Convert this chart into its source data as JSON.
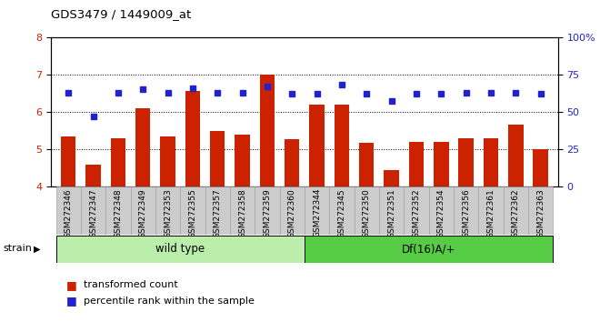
{
  "title": "GDS3479 / 1449009_at",
  "samples": [
    "GSM272346",
    "GSM272347",
    "GSM272348",
    "GSM272349",
    "GSM272353",
    "GSM272355",
    "GSM272357",
    "GSM272358",
    "GSM272359",
    "GSM272360",
    "GSM272344",
    "GSM272345",
    "GSM272350",
    "GSM272351",
    "GSM272352",
    "GSM272354",
    "GSM272356",
    "GSM272361",
    "GSM272362",
    "GSM272363"
  ],
  "red_values": [
    5.35,
    4.6,
    5.3,
    6.1,
    5.35,
    6.55,
    5.5,
    5.4,
    7.0,
    5.28,
    6.2,
    6.2,
    5.18,
    4.45,
    5.2,
    5.2,
    5.3,
    5.3,
    5.65,
    5.0
  ],
  "blue_values": [
    63,
    47,
    63,
    65,
    63,
    66,
    63,
    63,
    67,
    62,
    62,
    68,
    62,
    57,
    62,
    62,
    63,
    63,
    63,
    62
  ],
  "wild_type_count": 10,
  "df16_count": 10,
  "ylim_left": [
    4,
    8
  ],
  "ylim_right": [
    0,
    100
  ],
  "yticks_left": [
    4,
    5,
    6,
    7,
    8
  ],
  "yticks_right": [
    0,
    25,
    50,
    75,
    100
  ],
  "bar_color": "#cc2200",
  "dot_color": "#2222cc",
  "wild_type_label": "wild type",
  "df16_label": "Df(16)A/+",
  "strain_label": "strain",
  "legend_bar": "transformed count",
  "legend_dot": "percentile rank within the sample",
  "group_color_wt": "#bbeeaa",
  "group_color_df": "#55cc44",
  "xlabel_color": "#cc2200",
  "right_axis_color": "#2222cc"
}
